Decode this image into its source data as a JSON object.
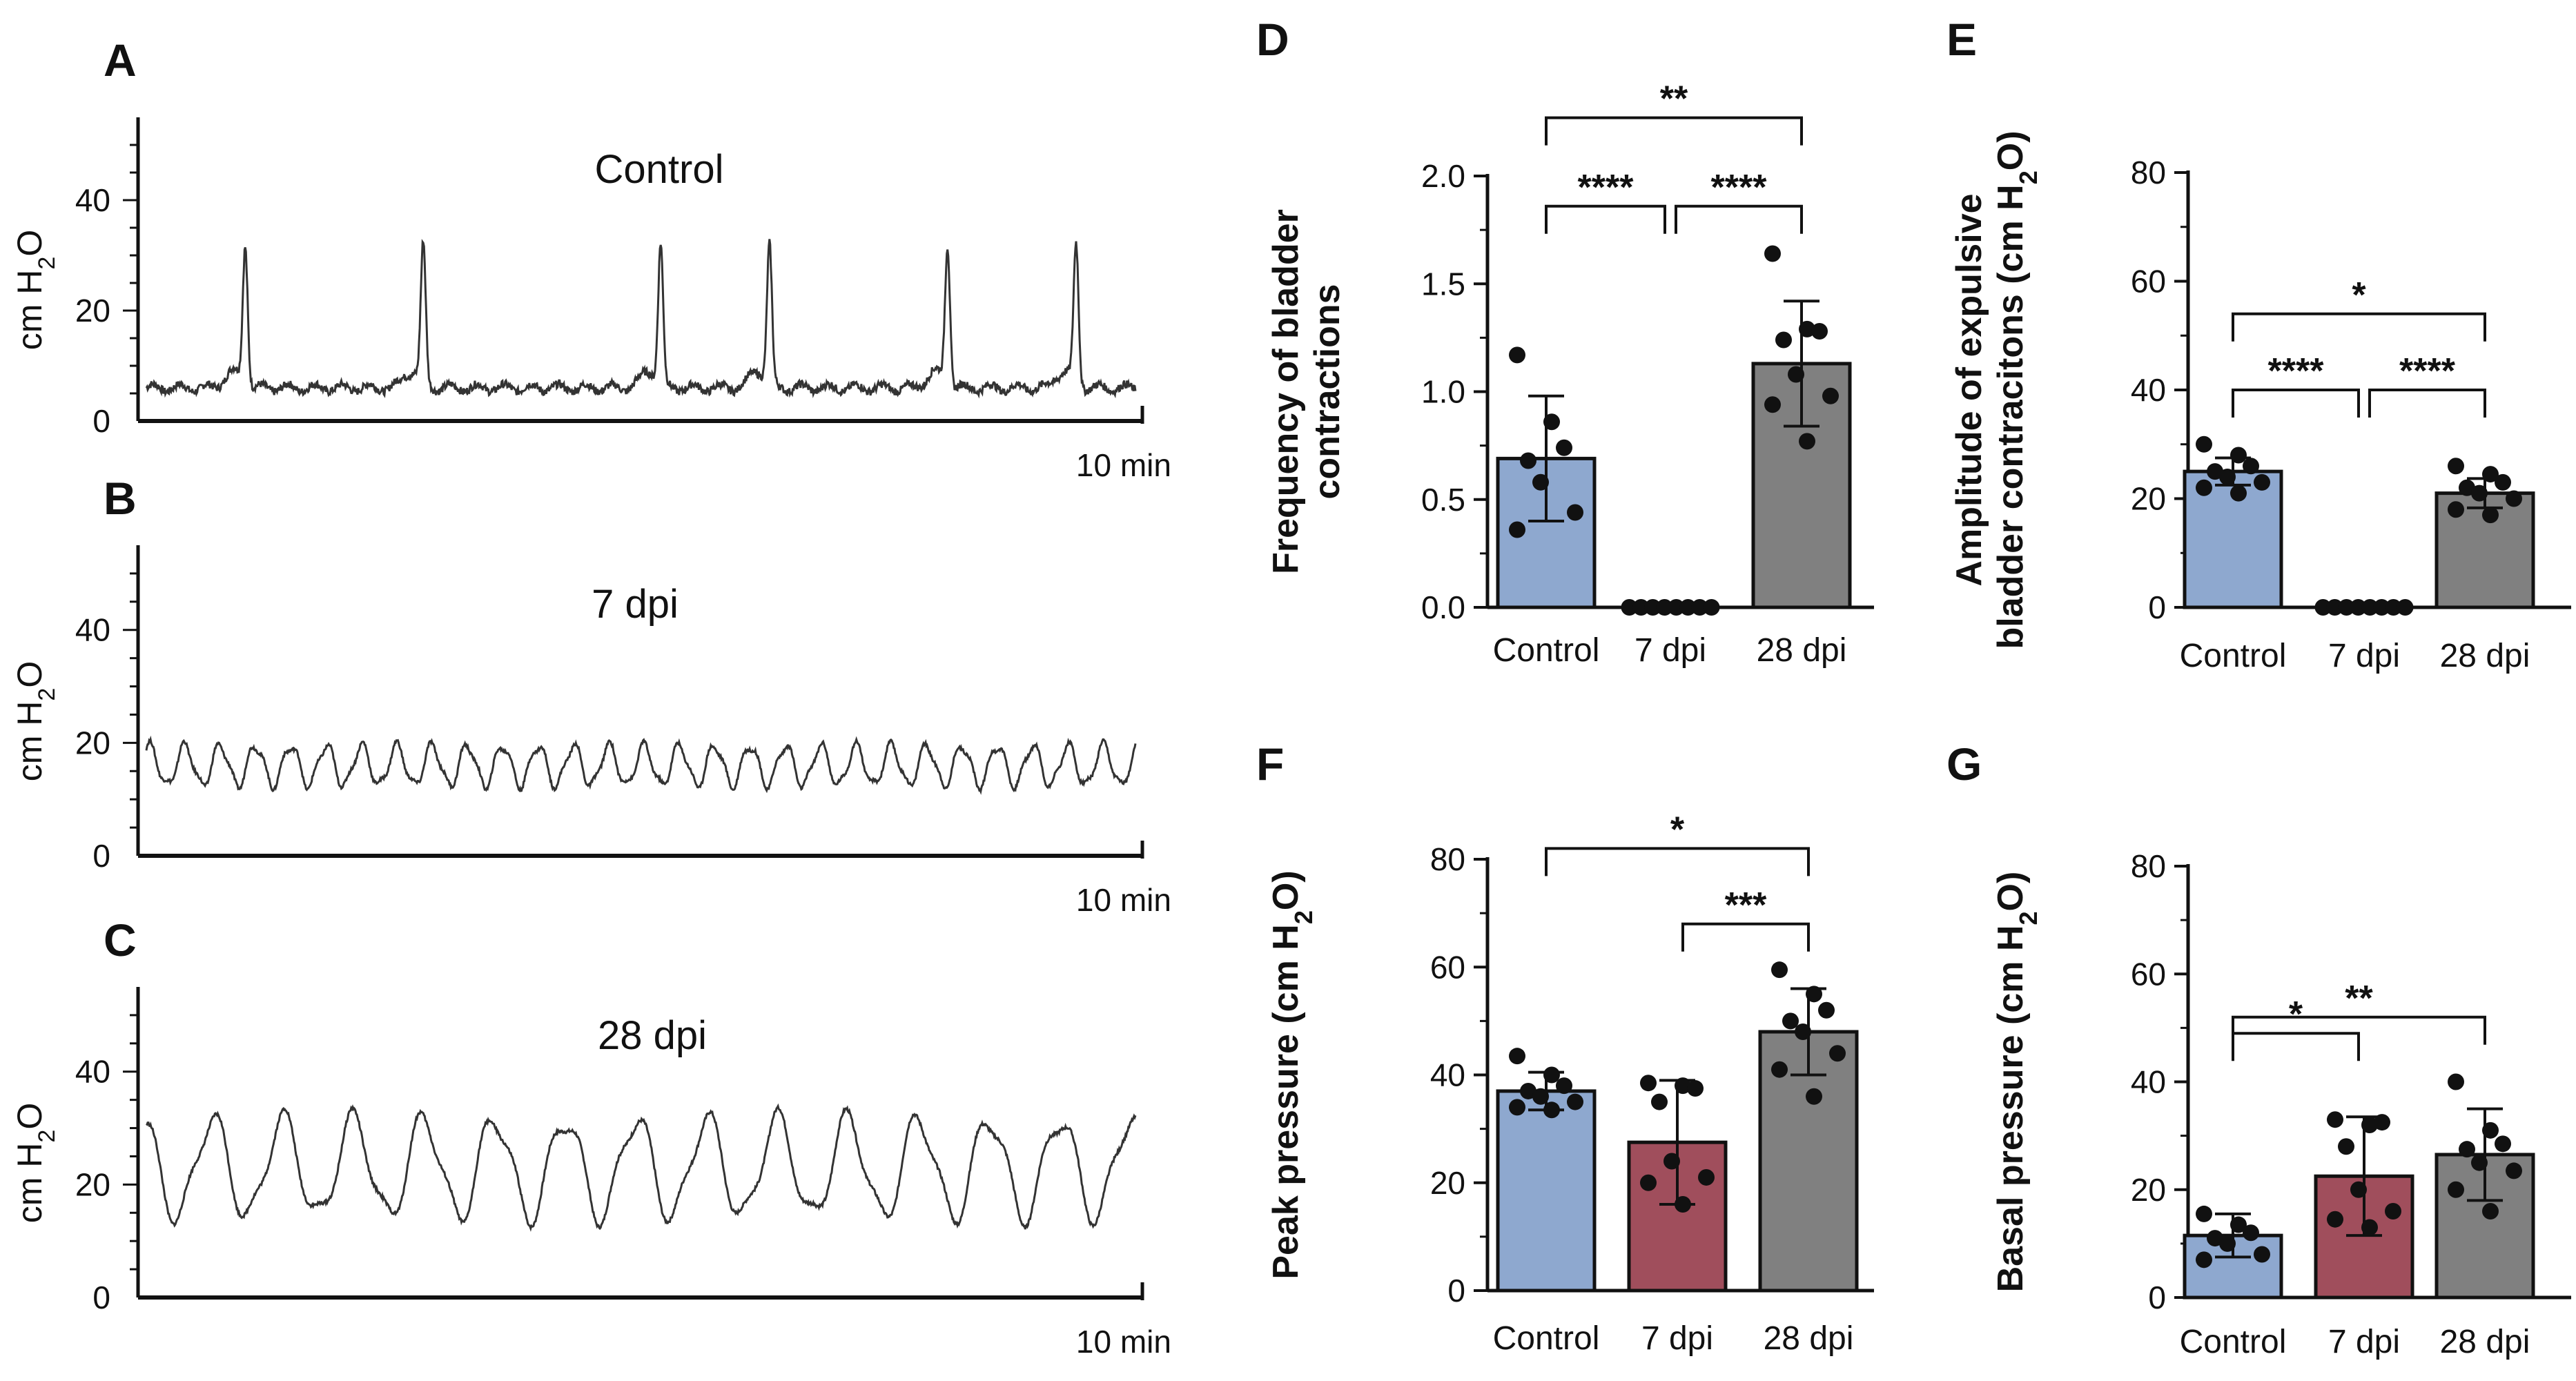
{
  "chart_data": [
    {
      "panel": "A",
      "type": "line",
      "title": "Control",
      "ylabel": "cm H2O",
      "ylabel_main": "cm H",
      "ylabel_sub": "2",
      "ylabel_end": "O",
      "yticks": [
        "0",
        "20",
        "40"
      ],
      "ylim": [
        0,
        55
      ],
      "time_label": "10 min",
      "trace": {
        "style": "spikes",
        "baseline": 6,
        "spike_height": 25,
        "spikes_at": [
          0.1,
          0.28,
          0.52,
          0.63,
          0.81,
          0.94
        ]
      }
    },
    {
      "panel": "B",
      "type": "line",
      "title": "7 dpi",
      "ylabel": "cm H2O",
      "ylabel_main": "cm H",
      "ylabel_sub": "2",
      "ylabel_end": "O",
      "yticks": [
        "0",
        "20",
        "40"
      ],
      "ylim": [
        0,
        55
      ],
      "time_label": "10 min",
      "trace": {
        "style": "oscillation",
        "mean": 16,
        "amplitude": 3.5,
        "cycles": 28
      }
    },
    {
      "panel": "C",
      "type": "line",
      "title": "28 dpi",
      "ylabel": "cm H2O",
      "ylabel_main": "cm H",
      "ylabel_sub": "2",
      "ylabel_end": "O",
      "yticks": [
        "0",
        "20",
        "40"
      ],
      "ylim": [
        0,
        55
      ],
      "time_label": "10 min",
      "trace": {
        "style": "oscillation",
        "mean": 23,
        "amplitude": 8.5,
        "cycles": 14
      }
    },
    {
      "panel": "D",
      "type": "bar",
      "ylabel_lines": [
        "Frequency of bladder",
        "contractions"
      ],
      "categories": [
        "Control",
        "7 dpi",
        "28 dpi"
      ],
      "values": [
        0.69,
        0.0,
        1.13
      ],
      "errors": [
        0.29,
        0.0,
        0.29
      ],
      "points": [
        [
          1.17,
          0.86,
          0.74,
          0.68,
          0.58,
          0.44,
          0.36
        ],
        [
          0,
          0,
          0,
          0,
          0,
          0,
          0,
          0
        ],
        [
          1.64,
          1.29,
          1.28,
          1.24,
          1.08,
          0.98,
          0.94,
          0.77
        ]
      ],
      "ylim": [
        0,
        2
      ],
      "yticks": [
        "0.0",
        "0.5",
        "1.0",
        "1.5",
        "2.0"
      ],
      "significance": [
        {
          "from": 0,
          "to": 2,
          "label": "**",
          "level": 2.27
        },
        {
          "from": 0,
          "to": 1,
          "label": "****",
          "level": 1.86
        },
        {
          "from": 1,
          "to": 2,
          "label": "****",
          "level": 1.86
        }
      ]
    },
    {
      "panel": "E",
      "type": "bar",
      "ylabel_lines": [
        "Amplitude of expulsive",
        "bladder contracitons (cm H2O)"
      ],
      "categories": [
        "Control",
        "7 dpi",
        "28 dpi"
      ],
      "values": [
        25.0,
        0.0,
        21.0
      ],
      "errors": [
        2.5,
        0.0,
        2.7
      ],
      "points": [
        [
          30,
          28,
          26,
          25,
          24,
          23,
          22,
          21
        ],
        [
          0,
          0,
          0,
          0,
          0,
          0,
          0,
          0
        ],
        [
          26,
          24.5,
          23,
          22,
          21,
          20,
          18,
          17
        ]
      ],
      "ylim": [
        0,
        80
      ],
      "yticks": [
        "0",
        "20",
        "40",
        "60",
        "80"
      ],
      "significance": [
        {
          "from": 0,
          "to": 2,
          "label": "*",
          "level": 54
        },
        {
          "from": 0,
          "to": 1,
          "label": "****",
          "level": 40
        },
        {
          "from": 1,
          "to": 2,
          "label": "****",
          "level": 40
        }
      ]
    },
    {
      "panel": "F",
      "type": "bar",
      "ylabel": "Peak pressure (cm H2O)",
      "categories": [
        "Control",
        "7 dpi",
        "28 dpi"
      ],
      "values": [
        37.0,
        27.5,
        48.0
      ],
      "errors": [
        3.5,
        11.5,
        8.0
      ],
      "points": [
        [
          43.5,
          40,
          38,
          37,
          36,
          35,
          34,
          33.5
        ],
        [
          38.5,
          38,
          37.5,
          35,
          24,
          21,
          20,
          16
        ],
        [
          59.5,
          55,
          52,
          50,
          48,
          44,
          41,
          36
        ]
      ],
      "ylim": [
        0,
        80
      ],
      "yticks": [
        "0",
        "20",
        "40",
        "60",
        "80"
      ],
      "significance": [
        {
          "from": 0,
          "to": 2,
          "label": "*",
          "level": 82
        },
        {
          "from": 1,
          "to": 2,
          "label": "***",
          "level": 68
        }
      ]
    },
    {
      "panel": "G",
      "type": "bar",
      "ylabel": "Basal pressure (cm H2O)",
      "categories": [
        "Control",
        "7 dpi",
        "28 dpi"
      ],
      "values": [
        11.5,
        22.5,
        26.5
      ],
      "errors": [
        4.0,
        11.0,
        8.5
      ],
      "points": [
        [
          15.5,
          13.5,
          12,
          11,
          10,
          8,
          7
        ],
        [
          33,
          32,
          32.5,
          28,
          20,
          16,
          14.5,
          13
        ],
        [
          40,
          31,
          28.5,
          27.5,
          25,
          23.5,
          20,
          16
        ]
      ],
      "ylim": [
        0,
        80
      ],
      "yticks": [
        "0",
        "20",
        "40",
        "60",
        "80"
      ],
      "significance": [
        {
          "from": 0,
          "to": 2,
          "label": "**",
          "level": 52
        },
        {
          "from": 0,
          "to": 1,
          "label": "*",
          "level": 49
        }
      ]
    }
  ],
  "colors": {
    "control": "#8EA8CF",
    "dpi7": "#A04E5C",
    "dpi28": "#808080",
    "ink": "#111111"
  }
}
